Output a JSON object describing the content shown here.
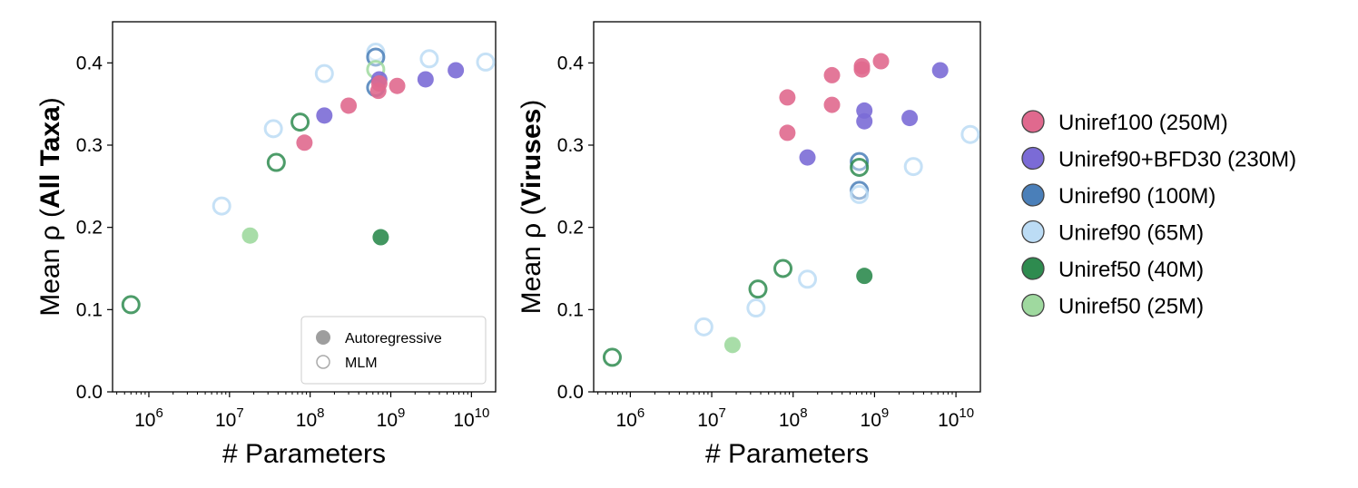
{
  "series_styles": [
    {
      "key": "u100",
      "name": "Uniref100 (250M)",
      "color": "#e0698e"
    },
    {
      "key": "bfd",
      "name": "Uniref90+BFD30 (230M)",
      "color": "#7b6bd6"
    },
    {
      "key": "u90l",
      "name": "Uniref90 (100M)",
      "color": "#4a7fb9"
    },
    {
      "key": "u90s",
      "name": "Uniref90 (65M)",
      "color": "#bcdcf5"
    },
    {
      "key": "u50l",
      "name": "Uniref50 (40M)",
      "color": "#2e8b4f"
    },
    {
      "key": "u50s",
      "name": "Uniref50 (25M)",
      "color": "#9fd99f"
    }
  ],
  "model_types": {
    "autoregressive": "Autoregressive",
    "mlm": "MLM"
  },
  "chart_data": [
    {
      "type": "scatter",
      "title": "",
      "xlabel": "# Parameters",
      "ylabel": "Mean ρ (All Taxa)",
      "ylabel_prefix": "Mean ρ (",
      "ylabel_bold": "All Taxa",
      "ylabel_suffix": ")",
      "xscale": "log",
      "xlim_log10": [
        5.55,
        10.3
      ],
      "ylim": [
        0.0,
        0.45
      ],
      "yticks": [
        0.0,
        0.1,
        0.2,
        0.3,
        0.4
      ],
      "yticklabels": [
        "0.0",
        "0.1",
        "0.2",
        "0.3",
        "0.4"
      ],
      "xticks_log10": [
        6,
        7,
        8,
        9,
        10
      ],
      "xticklabels_base": [
        "10",
        "10",
        "10",
        "10",
        "10"
      ],
      "xticklabels_exp": [
        "6",
        "7",
        "8",
        "9",
        "10"
      ],
      "has_model_type_legend": true,
      "model_type_legend_location": "lower-right",
      "points": [
        {
          "x": 600000.0,
          "y": 0.106,
          "series": "u50l",
          "kind": "mlm"
        },
        {
          "x": 8000000.0,
          "y": 0.226,
          "series": "u90s",
          "kind": "mlm"
        },
        {
          "x": 18000000.0,
          "y": 0.19,
          "series": "u50s",
          "kind": "autoregressive"
        },
        {
          "x": 35000000.0,
          "y": 0.32,
          "series": "u90s",
          "kind": "mlm"
        },
        {
          "x": 38000000.0,
          "y": 0.279,
          "series": "u50l",
          "kind": "mlm"
        },
        {
          "x": 75000000.0,
          "y": 0.328,
          "series": "u50l",
          "kind": "mlm"
        },
        {
          "x": 85000000.0,
          "y": 0.303,
          "series": "u100",
          "kind": "autoregressive"
        },
        {
          "x": 150000000.0,
          "y": 0.387,
          "series": "u90s",
          "kind": "mlm"
        },
        {
          "x": 150000000.0,
          "y": 0.336,
          "series": "bfd",
          "kind": "autoregressive"
        },
        {
          "x": 300000000.0,
          "y": 0.348,
          "series": "u100",
          "kind": "autoregressive"
        },
        {
          "x": 650000000.0,
          "y": 0.413,
          "series": "u90s",
          "kind": "mlm"
        },
        {
          "x": 650000000.0,
          "y": 0.407,
          "series": "u90l",
          "kind": "mlm"
        },
        {
          "x": 650000000.0,
          "y": 0.392,
          "series": "u50s",
          "kind": "mlm"
        },
        {
          "x": 650000000.0,
          "y": 0.37,
          "series": "u90l",
          "kind": "mlm"
        },
        {
          "x": 720000000.0,
          "y": 0.38,
          "series": "bfd",
          "kind": "autoregressive"
        },
        {
          "x": 720000000.0,
          "y": 0.375,
          "series": "u100",
          "kind": "autoregressive"
        },
        {
          "x": 700000000.0,
          "y": 0.366,
          "series": "u100",
          "kind": "autoregressive"
        },
        {
          "x": 750000000.0,
          "y": 0.188,
          "series": "u50l",
          "kind": "autoregressive"
        },
        {
          "x": 1200000000.0,
          "y": 0.372,
          "series": "u100",
          "kind": "autoregressive"
        },
        {
          "x": 2700000000.0,
          "y": 0.38,
          "series": "bfd",
          "kind": "autoregressive"
        },
        {
          "x": 3000000000.0,
          "y": 0.405,
          "series": "u90s",
          "kind": "mlm"
        },
        {
          "x": 6400000000.0,
          "y": 0.391,
          "series": "bfd",
          "kind": "autoregressive"
        },
        {
          "x": 15000000000.0,
          "y": 0.401,
          "series": "u90s",
          "kind": "mlm"
        }
      ]
    },
    {
      "type": "scatter",
      "title": "",
      "xlabel": "# Parameters",
      "ylabel": "Mean ρ (Viruses)",
      "ylabel_prefix": "Mean ρ (",
      "ylabel_bold": "Viruses",
      "ylabel_suffix": ")",
      "xscale": "log",
      "xlim_log10": [
        5.55,
        10.3
      ],
      "ylim": [
        0.0,
        0.45
      ],
      "yticks": [
        0.0,
        0.1,
        0.2,
        0.3,
        0.4
      ],
      "yticklabels": [
        "0.0",
        "0.1",
        "0.2",
        "0.3",
        "0.4"
      ],
      "xticks_log10": [
        6,
        7,
        8,
        9,
        10
      ],
      "xticklabels_base": [
        "10",
        "10",
        "10",
        "10",
        "10"
      ],
      "xticklabels_exp": [
        "6",
        "7",
        "8",
        "9",
        "10"
      ],
      "has_model_type_legend": false,
      "points": [
        {
          "x": 600000.0,
          "y": 0.042,
          "series": "u50l",
          "kind": "mlm"
        },
        {
          "x": 8000000.0,
          "y": 0.079,
          "series": "u90s",
          "kind": "mlm"
        },
        {
          "x": 18000000.0,
          "y": 0.057,
          "series": "u50s",
          "kind": "autoregressive"
        },
        {
          "x": 35000000.0,
          "y": 0.102,
          "series": "u90s",
          "kind": "mlm"
        },
        {
          "x": 37000000.0,
          "y": 0.125,
          "series": "u50l",
          "kind": "mlm"
        },
        {
          "x": 75000000.0,
          "y": 0.15,
          "series": "u50l",
          "kind": "mlm"
        },
        {
          "x": 85000000.0,
          "y": 0.358,
          "series": "u100",
          "kind": "autoregressive"
        },
        {
          "x": 85000000.0,
          "y": 0.315,
          "series": "u100",
          "kind": "autoregressive"
        },
        {
          "x": 150000000.0,
          "y": 0.137,
          "series": "u90s",
          "kind": "mlm"
        },
        {
          "x": 150000000.0,
          "y": 0.285,
          "series": "bfd",
          "kind": "autoregressive"
        },
        {
          "x": 300000000.0,
          "y": 0.385,
          "series": "u100",
          "kind": "autoregressive"
        },
        {
          "x": 300000000.0,
          "y": 0.349,
          "series": "u100",
          "kind": "autoregressive"
        },
        {
          "x": 650000000.0,
          "y": 0.28,
          "series": "u90l",
          "kind": "mlm"
        },
        {
          "x": 650000000.0,
          "y": 0.273,
          "series": "u50l",
          "kind": "mlm"
        },
        {
          "x": 650000000.0,
          "y": 0.245,
          "series": "u90l",
          "kind": "mlm"
        },
        {
          "x": 650000000.0,
          "y": 0.24,
          "series": "u90s",
          "kind": "mlm"
        },
        {
          "x": 700000000.0,
          "y": 0.396,
          "series": "u100",
          "kind": "autoregressive"
        },
        {
          "x": 700000000.0,
          "y": 0.392,
          "series": "u100",
          "kind": "autoregressive"
        },
        {
          "x": 750000000.0,
          "y": 0.342,
          "series": "bfd",
          "kind": "autoregressive"
        },
        {
          "x": 750000000.0,
          "y": 0.329,
          "series": "bfd",
          "kind": "autoregressive"
        },
        {
          "x": 750000000.0,
          "y": 0.141,
          "series": "u50l",
          "kind": "autoregressive"
        },
        {
          "x": 1200000000.0,
          "y": 0.402,
          "series": "u100",
          "kind": "autoregressive"
        },
        {
          "x": 2700000000.0,
          "y": 0.333,
          "series": "bfd",
          "kind": "autoregressive"
        },
        {
          "x": 3000000000.0,
          "y": 0.274,
          "series": "u90s",
          "kind": "mlm"
        },
        {
          "x": 6400000000.0,
          "y": 0.391,
          "series": "bfd",
          "kind": "autoregressive"
        },
        {
          "x": 15000000000.0,
          "y": 0.313,
          "series": "u90s",
          "kind": "mlm"
        }
      ]
    }
  ]
}
